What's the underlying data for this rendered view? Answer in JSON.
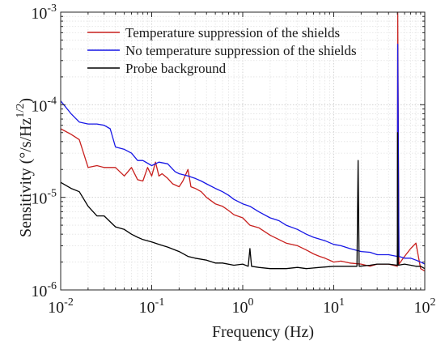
{
  "chart_data": {
    "type": "line",
    "title": "",
    "xlabel": "Frequency (Hz)",
    "ylabel": "Sensitivity (°/s/Hz^1/2)",
    "ylabel_parts": {
      "main": "Sensitivity (°/s/Hz",
      "superscript": "1/2",
      "close": ")"
    },
    "x_scale": "log",
    "y_scale": "log",
    "xlim": [
      0.01,
      100
    ],
    "ylim": [
      1e-06,
      0.001
    ],
    "grid": true,
    "legend_position": "top-left",
    "x_ticks": [
      {
        "value": 0.01,
        "base": "10",
        "exp": "-2"
      },
      {
        "value": 0.1,
        "base": "10",
        "exp": "-1"
      },
      {
        "value": 1,
        "base": "10",
        "exp": "0"
      },
      {
        "value": 10,
        "base": "10",
        "exp": "1"
      },
      {
        "value": 100,
        "base": "10",
        "exp": "2"
      }
    ],
    "y_ticks": [
      {
        "value": 1e-06,
        "base": "10",
        "exp": "-6"
      },
      {
        "value": 1e-05,
        "base": "10",
        "exp": "-5"
      },
      {
        "value": 0.0001,
        "base": "10",
        "exp": "-4"
      },
      {
        "value": 0.001,
        "base": "10",
        "exp": "-3"
      }
    ],
    "series": [
      {
        "name": "Temperature suppression of the shields",
        "color": "#c8201e",
        "x": [
          0.01,
          0.013,
          0.016,
          0.02,
          0.025,
          0.03,
          0.04,
          0.05,
          0.06,
          0.07,
          0.08,
          0.09,
          0.1,
          0.11,
          0.12,
          0.13,
          0.15,
          0.17,
          0.2,
          0.22,
          0.25,
          0.27,
          0.3,
          0.35,
          0.4,
          0.5,
          0.6,
          0.7,
          0.8,
          1,
          1.2,
          1.5,
          2,
          2.5,
          3,
          4,
          5,
          6,
          7,
          8,
          10,
          12,
          15,
          20,
          25,
          30,
          40,
          50,
          50.5,
          52,
          60,
          70,
          80,
          90,
          100
        ],
        "y": [
          5.5e-05,
          4.8e-05,
          4.2e-05,
          2.1e-05,
          2.2e-05,
          2.1e-05,
          2.1e-05,
          1.7e-05,
          2.1e-05,
          1.55e-05,
          1.5e-05,
          2.1e-05,
          1.7e-05,
          2.4e-05,
          1.7e-05,
          1.8e-05,
          1.6e-05,
          1.4e-05,
          1.3e-05,
          1.5e-05,
          2e-05,
          1.3e-05,
          1.25e-05,
          1.15e-05,
          1e-05,
          8.5e-06,
          8e-06,
          7.2e-06,
          6.5e-06,
          6e-06,
          5e-06,
          4.7e-06,
          3.9e-06,
          3.5e-06,
          3.2e-06,
          3e-06,
          2.7e-06,
          2.45e-06,
          2.3e-06,
          2.2e-06,
          2e-06,
          2.05e-06,
          1.95e-06,
          1.9e-06,
          1.8e-06,
          1.9e-06,
          1.9e-06,
          1.8e-06,
          0.001,
          1.9e-06,
          2.3e-06,
          2.8e-06,
          3.2e-06,
          1.7e-06,
          1.6e-06
        ]
      },
      {
        "name": "No temperature suppression of the shields",
        "color": "#1717e6",
        "x": [
          0.01,
          0.013,
          0.016,
          0.02,
          0.025,
          0.03,
          0.035,
          0.04,
          0.05,
          0.06,
          0.07,
          0.08,
          0.1,
          0.12,
          0.15,
          0.18,
          0.2,
          0.25,
          0.3,
          0.35,
          0.4,
          0.5,
          0.6,
          0.7,
          0.8,
          1,
          1.2,
          1.5,
          2,
          2.5,
          3,
          4,
          5,
          6,
          8,
          10,
          12,
          15,
          20,
          25,
          30,
          40,
          50,
          50.5,
          52,
          60,
          70,
          80,
          90,
          100
        ],
        "y": [
          0.00011,
          8e-05,
          6.5e-05,
          6.2e-05,
          6.2e-05,
          6e-05,
          5.5e-05,
          3.5e-05,
          3.3e-05,
          3e-05,
          2.5e-05,
          2.5e-05,
          2.2e-05,
          2.4e-05,
          2.3e-05,
          1.9e-05,
          1.8e-05,
          1.7e-05,
          1.6e-05,
          1.5e-05,
          1.4e-05,
          1.25e-05,
          1.15e-05,
          1.05e-05,
          9.5e-06,
          8.5e-06,
          8e-06,
          7e-06,
          6e-06,
          5.6e-06,
          5e-06,
          4.5e-06,
          4e-06,
          3.7e-06,
          3.4e-06,
          3.1e-06,
          3e-06,
          2.8e-06,
          2.6e-06,
          2.55e-06,
          2.4e-06,
          2.4e-06,
          2.3e-06,
          0.00045,
          2.3e-06,
          2.2e-06,
          2.2e-06,
          2.1e-06,
          2e-06,
          1.9e-06
        ]
      },
      {
        "name": "Probe background",
        "color": "#000000",
        "x": [
          0.01,
          0.013,
          0.016,
          0.02,
          0.025,
          0.03,
          0.04,
          0.05,
          0.06,
          0.07,
          0.08,
          0.1,
          0.12,
          0.15,
          0.2,
          0.25,
          0.3,
          0.4,
          0.5,
          0.6,
          0.8,
          1,
          1.15,
          1.2,
          1.25,
          1.5,
          2,
          3,
          4,
          5,
          7,
          10,
          15,
          18,
          18.5,
          19,
          25,
          30,
          40,
          50,
          50.3,
          51,
          60,
          70,
          80,
          90,
          100
        ],
        "y": [
          1.45e-05,
          1.25e-05,
          1.15e-05,
          8e-06,
          6.3e-06,
          6.3e-06,
          4.8e-06,
          4.5e-06,
          4e-06,
          3.7e-06,
          3.5e-06,
          3.3e-06,
          3.1e-06,
          2.9e-06,
          2.6e-06,
          2.3e-06,
          2.2e-06,
          2.1e-06,
          1.95e-06,
          1.95e-06,
          1.85e-06,
          1.9e-06,
          1.8e-06,
          2.8e-06,
          1.8e-06,
          1.75e-06,
          1.7e-06,
          1.7e-06,
          1.75e-06,
          1.7e-06,
          1.75e-06,
          1.8e-06,
          1.8e-06,
          1.8e-06,
          2.5e-05,
          1.8e-06,
          1.85e-06,
          1.9e-06,
          1.9e-06,
          1.85e-06,
          5e-05,
          1.85e-06,
          1.9e-06,
          1.85e-06,
          1.8e-06,
          1.8e-06,
          1.7e-06
        ]
      }
    ]
  }
}
